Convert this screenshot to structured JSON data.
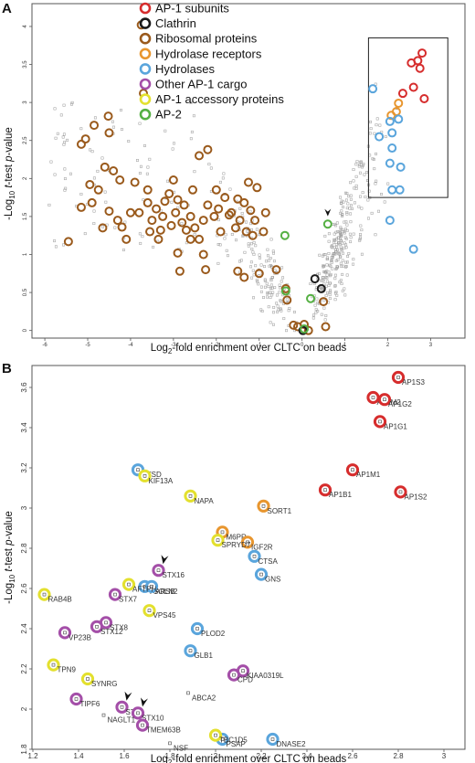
{
  "panels": {
    "a": {
      "letter": "A"
    },
    "b": {
      "letter": "B"
    }
  },
  "legend": {
    "items": [
      {
        "label": "AP-1 subunits",
        "color": "#d62d2d"
      },
      {
        "label": "Clathrin",
        "color": "#1a1a1a"
      },
      {
        "label": "Ribosomal proteins",
        "color": "#9a5a1c"
      },
      {
        "label": "Hydrolase receptors",
        "color": "#e8962f"
      },
      {
        "label": "Hydrolases",
        "color": "#5aa5dc"
      },
      {
        "label": "Other AP-1 cargo",
        "color": "#a44fa8"
      },
      {
        "label": "AP-1 accessory proteins",
        "color": "#e3e02e"
      },
      {
        "label": "AP-2",
        "color": "#55b043"
      }
    ]
  },
  "chart_data": [
    {
      "type": "scatter",
      "panel": "A",
      "xlabel": "Log2-fold enrichment over CLTC on beads",
      "ylabel": "-Log10 t-test p-value",
      "xlim": [
        -6.3,
        3.8
      ],
      "ylim": [
        -0.1,
        4.3
      ],
      "xticks": [
        "-6",
        "-5",
        "-4",
        "-3",
        "-2",
        "-1",
        "0",
        "1",
        "2",
        "3"
      ],
      "yticks": [
        "0",
        "0.5",
        "1",
        "1.5",
        "2",
        "2.5",
        "3",
        "3.5",
        "4"
      ],
      "highlight_box": {
        "x": [
          1.55,
          3.4
        ],
        "y": [
          1.75,
          3.85
        ]
      },
      "arrow_at": [
        0.6,
        1.42
      ],
      "series": [
        {
          "group": "Ribosomal proteins",
          "color": "#9a5a1c",
          "points": [
            [
              -3.75,
              4.02
            ],
            [
              -3.7,
              3.12
            ],
            [
              -4.52,
              2.82
            ],
            [
              -4.5,
              2.6
            ],
            [
              -5.05,
              2.52
            ],
            [
              -5.15,
              2.45
            ],
            [
              -5.45,
              1.17
            ],
            [
              -5.15,
              1.62
            ],
            [
              -4.9,
              1.68
            ],
            [
              -4.75,
              1.85
            ],
            [
              -4.5,
              1.57
            ],
            [
              -4.2,
              1.36
            ],
            [
              -4.0,
              1.55
            ],
            [
              -4.1,
              1.2
            ],
            [
              -4.4,
              2.1
            ],
            [
              -4.6,
              2.15
            ],
            [
              -4.25,
              1.98
            ],
            [
              -3.9,
              1.95
            ],
            [
              -4.3,
              1.45
            ],
            [
              -3.6,
              1.68
            ],
            [
              -3.5,
              1.45
            ],
            [
              -3.35,
              1.2
            ],
            [
              -3.4,
              1.6
            ],
            [
              -3.2,
              1.7
            ],
            [
              -3.0,
              1.98
            ],
            [
              -2.9,
              1.72
            ],
            [
              -2.75,
              1.65
            ],
            [
              -2.6,
              1.5
            ],
            [
              -2.5,
              1.35
            ],
            [
              -2.4,
              1.2
            ],
            [
              -2.8,
              1.42
            ],
            [
              -3.05,
              1.38
            ],
            [
              -2.7,
              1.32
            ],
            [
              -2.3,
              1.45
            ],
            [
              -2.2,
              1.65
            ],
            [
              -2.05,
              1.5
            ],
            [
              -1.9,
              1.3
            ],
            [
              -1.7,
              1.52
            ],
            [
              -1.8,
              1.75
            ],
            [
              -1.55,
              1.35
            ],
            [
              -1.5,
              1.73
            ],
            [
              -1.35,
              1.68
            ],
            [
              -1.3,
              1.3
            ],
            [
              -1.25,
              1.95
            ],
            [
              -1.1,
              1.45
            ],
            [
              -2.4,
              2.3
            ],
            [
              -2.9,
              1.02
            ],
            [
              -2.85,
              0.78
            ],
            [
              -2.3,
              1.0
            ],
            [
              -2.25,
              0.8
            ],
            [
              -1.5,
              0.78
            ],
            [
              -1.35,
              0.7
            ],
            [
              -1.0,
              0.75
            ],
            [
              -0.6,
              0.8
            ],
            [
              -4.65,
              1.35
            ],
            [
              -4.85,
              2.7
            ],
            [
              -4.95,
              1.92
            ],
            [
              -3.8,
              1.55
            ],
            [
              -3.55,
              1.3
            ],
            [
              -3.25,
              1.5
            ],
            [
              -3.1,
              1.8
            ],
            [
              -2.95,
              1.55
            ],
            [
              -2.55,
              1.85
            ],
            [
              -2.0,
              1.85
            ],
            [
              -1.65,
              1.55
            ],
            [
              -1.45,
              1.45
            ],
            [
              -1.15,
              1.25
            ],
            [
              -1.05,
              1.88
            ],
            [
              -0.9,
              1.3
            ],
            [
              -2.2,
              2.38
            ],
            [
              -3.6,
              1.85
            ],
            [
              -3.3,
              1.32
            ],
            [
              -2.6,
              1.2
            ],
            [
              -1.95,
              1.6
            ],
            [
              -1.2,
              1.58
            ],
            [
              -0.85,
              1.55
            ],
            [
              0.5,
              0.38
            ],
            [
              0.55,
              0.05
            ],
            [
              -0.2,
              0.07
            ],
            [
              -0.1,
              0.05
            ],
            [
              -0.35,
              0.4
            ],
            [
              -0.38,
              0.55
            ],
            [
              0.15,
              0.0
            ],
            [
              0.05,
              0.08
            ]
          ]
        },
        {
          "group": "AP-1 subunits",
          "color": "#d62d2d",
          "points": [
            [
              2.8,
              3.65
            ],
            [
              2.7,
              3.55
            ],
            [
              2.75,
              3.45
            ],
            [
              2.55,
              3.52
            ],
            [
              2.35,
              3.12
            ],
            [
              2.6,
              3.2
            ],
            [
              2.85,
              3.05
            ]
          ]
        },
        {
          "group": "Hydrolase receptors",
          "color": "#e8962f",
          "points": [
            [
              2.2,
              2.88
            ],
            [
              2.08,
              2.83
            ],
            [
              2.25,
              2.99
            ]
          ]
        },
        {
          "group": "Hydrolases",
          "color": "#5aa5dc",
          "points": [
            [
              1.65,
              3.18
            ],
            [
              2.05,
              2.75
            ],
            [
              2.1,
              2.6
            ],
            [
              2.25,
              2.78
            ],
            [
              1.8,
              2.55
            ],
            [
              2.1,
              2.4
            ],
            [
              2.05,
              2.2
            ],
            [
              2.3,
              2.15
            ],
            [
              2.1,
              1.85
            ],
            [
              2.28,
              1.85
            ],
            [
              2.05,
              1.45
            ],
            [
              2.6,
              1.07
            ]
          ]
        },
        {
          "group": "Clathrin",
          "color": "#1a1a1a",
          "points": [
            [
              0.02,
              0.0
            ],
            [
              0.3,
              0.68
            ],
            [
              0.45,
              0.55
            ]
          ]
        },
        {
          "group": "AP-2",
          "color": "#55b043",
          "points": [
            [
              0.6,
              1.4
            ],
            [
              -0.4,
              1.25
            ],
            [
              -0.38,
              0.52
            ],
            [
              0.2,
              0.42
            ],
            [
              0.05,
              0.02
            ]
          ]
        }
      ]
    },
    {
      "type": "scatter",
      "panel": "B",
      "xlabel": "Log2-fold enrichment over CLTC on beads",
      "ylabel": "-Log10 t-test p-value",
      "xlim": [
        1.2,
        3.0
      ],
      "ylim": [
        1.8,
        3.7
      ],
      "xticks": [
        "1.2",
        "1.4",
        "1.6",
        "1.8",
        "2",
        "2.2",
        "2.4",
        "2.6",
        "2.8",
        "3"
      ],
      "yticks": [
        "1.8",
        "2",
        "2.2",
        "2.4",
        "2.6",
        "2.8",
        "3",
        "3.2",
        "3.4",
        "3.6"
      ],
      "arrows_at": [
        [
          1.75,
          2.69
        ],
        [
          1.59,
          2.01
        ],
        [
          1.66,
          1.98
        ]
      ],
      "points": [
        {
          "label": "AP1S3",
          "x": 2.8,
          "y": 3.65,
          "color": "#d62d2d"
        },
        {
          "label": "AP1M2",
          "x": 2.69,
          "y": 3.55,
          "color": "#d62d2d"
        },
        {
          "label": "AP1G2",
          "x": 2.74,
          "y": 3.54,
          "color": "#d62d2d"
        },
        {
          "label": "AP1G1",
          "x": 2.72,
          "y": 3.43,
          "color": "#d62d2d"
        },
        {
          "label": "AP1M1",
          "x": 2.6,
          "y": 3.19,
          "color": "#d62d2d"
        },
        {
          "label": "AP1B1",
          "x": 2.48,
          "y": 3.09,
          "color": "#d62d2d"
        },
        {
          "label": "AP1S2",
          "x": 2.81,
          "y": 3.08,
          "color": "#d62d2d"
        },
        {
          "label": "CTSD",
          "x": 1.66,
          "y": 3.19,
          "color": "#5aa5dc"
        },
        {
          "label": "TGOLN2",
          "x": 1.69,
          "y": 2.61,
          "color": "#5aa5dc"
        },
        {
          "label": "ARSB",
          "x": 1.72,
          "y": 2.61,
          "color": "#5aa5dc"
        },
        {
          "label": "CTSA",
          "x": 2.17,
          "y": 2.76,
          "color": "#5aa5dc"
        },
        {
          "label": "GNS",
          "x": 2.2,
          "y": 2.67,
          "color": "#5aa5dc"
        },
        {
          "label": "PLOD2",
          "x": 1.92,
          "y": 2.4,
          "color": "#5aa5dc"
        },
        {
          "label": "GLB1",
          "x": 1.89,
          "y": 2.29,
          "color": "#5aa5dc"
        },
        {
          "label": "PSAP",
          "x": 2.03,
          "y": 1.85,
          "color": "#5aa5dc"
        },
        {
          "label": "DNASE2",
          "x": 2.25,
          "y": 1.85,
          "color": "#5aa5dc"
        },
        {
          "label": "SORT1",
          "x": 2.21,
          "y": 3.01,
          "color": "#e8962f"
        },
        {
          "label": "M6PR",
          "x": 2.03,
          "y": 2.88,
          "color": "#e8962f"
        },
        {
          "label": "IGF2R",
          "x": 2.14,
          "y": 2.83,
          "color": "#e8962f"
        },
        {
          "label": "KIF13A",
          "x": 1.69,
          "y": 3.16,
          "color": "#e3e02e"
        },
        {
          "label": "NAPA",
          "x": 1.89,
          "y": 3.06,
          "color": "#e3e02e"
        },
        {
          "label": "SPRYD7",
          "x": 2.01,
          "y": 2.84,
          "color": "#e3e02e"
        },
        {
          "label": "AFTPH",
          "x": 1.62,
          "y": 2.62,
          "color": "#e3e02e"
        },
        {
          "label": "VPS45",
          "x": 1.71,
          "y": 2.49,
          "color": "#e3e02e"
        },
        {
          "label": "RAB4B",
          "x": 1.25,
          "y": 2.57,
          "color": "#e3e02e"
        },
        {
          "label": "TPN9",
          "x": 1.29,
          "y": 2.22,
          "color": "#e3e02e"
        },
        {
          "label": "SYNRG",
          "x": 1.44,
          "y": 2.15,
          "color": "#e3e02e"
        },
        {
          "label": "TBC1D5",
          "x": 2.0,
          "y": 1.87,
          "color": "#e3e02e"
        },
        {
          "label": "STX16",
          "x": 1.75,
          "y": 2.69,
          "color": "#a44fa8"
        },
        {
          "label": "STX7",
          "x": 1.56,
          "y": 2.57,
          "color": "#a44fa8"
        },
        {
          "label": "STX8",
          "x": 1.52,
          "y": 2.43,
          "color": "#a44fa8"
        },
        {
          "label": "STX12",
          "x": 1.48,
          "y": 2.41,
          "color": "#a44fa8"
        },
        {
          "label": "VP23B",
          "x": 1.34,
          "y": 2.38,
          "color": "#a44fa8"
        },
        {
          "label": "TIPF6",
          "x": 1.39,
          "y": 2.05,
          "color": "#a44fa8"
        },
        {
          "label": "STX6",
          "x": 1.59,
          "y": 2.01,
          "color": "#a44fa8"
        },
        {
          "label": "STX10",
          "x": 1.66,
          "y": 1.98,
          "color": "#a44fa8"
        },
        {
          "label": "TMEM63B",
          "x": 1.68,
          "y": 1.92,
          "color": "#a44fa8"
        },
        {
          "label": "KIAA0319L",
          "x": 2.12,
          "y": 2.19,
          "color": "#a44fa8"
        },
        {
          "label": "CPD",
          "x": 2.08,
          "y": 2.17,
          "color": "#a44fa8"
        },
        {
          "label": "ABCA2",
          "x": 1.88,
          "y": 2.08,
          "color": "#9a9a9a"
        },
        {
          "label": "NAGLT1",
          "x": 1.51,
          "y": 1.97,
          "color": "#9a9a9a"
        },
        {
          "label": "NSF",
          "x": 1.8,
          "y": 1.83,
          "color": "#9a9a9a"
        }
      ]
    }
  ]
}
